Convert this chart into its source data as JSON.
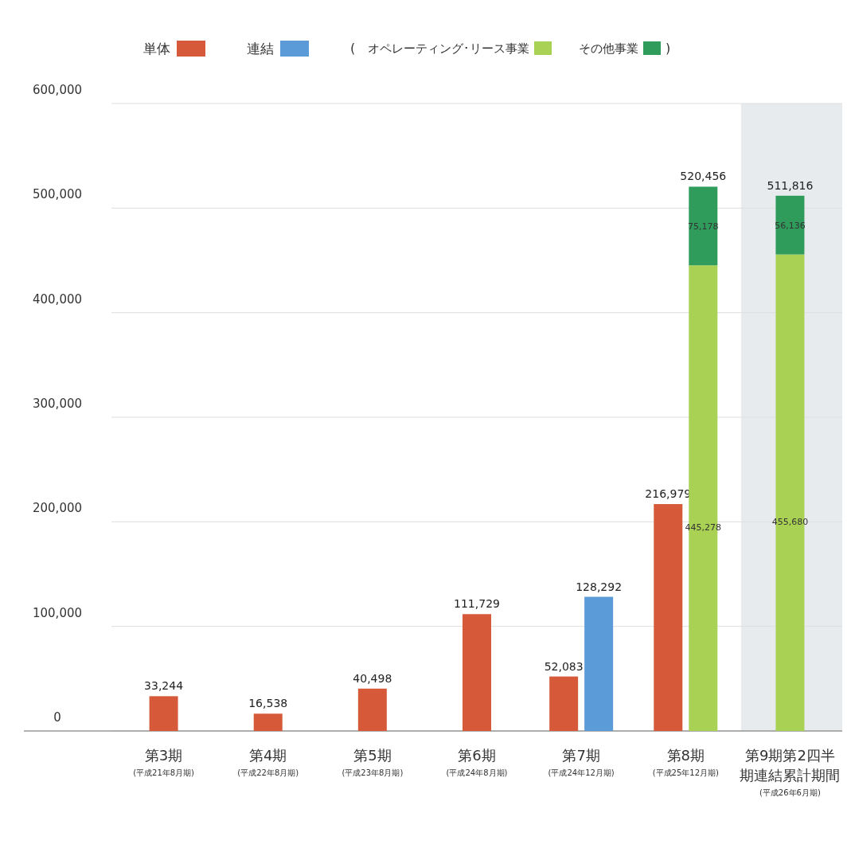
{
  "chart_data": {
    "type": "bar",
    "categories": [
      "第3期\n(平成21年8月期)",
      "第4期\n(平成22年8月期)",
      "第5期\n(平成23年8月期)",
      "第6期\n(平成24年8月期)",
      "第7期\n(平成24年12月期)",
      "第8期\n(平成25年12月期)",
      "第9期第2四半期連結累計期間\n(平成26年6月期)"
    ],
    "series": [
      {
        "name": "単体",
        "color": "#d65a3a",
        "values": [
          33244,
          16538,
          40498,
          111729,
          52083,
          216979,
          null
        ],
        "value_labels": [
          "33,244",
          "16,538",
          "40,498",
          "111,729",
          "52,083",
          "216,979",
          null
        ]
      },
      {
        "name": "連結",
        "color": "#5b9bd8",
        "values": [
          null,
          null,
          null,
          null,
          128292,
          null,
          null
        ],
        "value_labels": [
          null,
          null,
          null,
          null,
          "128,292",
          null,
          null
        ]
      },
      {
        "name": "オペレーティング･リース事業",
        "color": "#a9d154",
        "values": [
          null,
          null,
          null,
          null,
          null,
          445278,
          455680
        ],
        "value_labels": [
          null,
          null,
          null,
          null,
          null,
          "445,278",
          "455,680"
        ]
      },
      {
        "name": "その他事業",
        "color": "#2f9c5c",
        "values": [
          null,
          null,
          null,
          null,
          null,
          75178,
          56136
        ],
        "base": [
          null,
          null,
          null,
          null,
          null,
          445278,
          455680
        ],
        "value_labels": [
          null,
          null,
          null,
          null,
          null,
          "75,178",
          "56,136"
        ]
      }
    ],
    "ylim": [
      0,
      600000
    ],
    "yticks": [
      0,
      {
        "value": 100000,
        "label": "100,000"
      },
      {
        "value": 200000,
        "label": "200,000"
      },
      {
        "value": 300000,
        "label": "300,000"
      },
      {
        "value": 400000,
        "label": "400,000"
      },
      {
        "value": 500000,
        "label": "500,000"
      },
      {
        "value": 600000,
        "label": "600,000"
      }
    ],
    "grid": "y",
    "legend": "top",
    "annotations": [
      "(",
      ")",
      {
        "text": "520,456",
        "x": "第8期\n(平成25年12月期)",
        "y": 520456
      },
      {
        "text": "511,816",
        "x": "第9期第2四半期連結累計期間\n(平成26年6月期)",
        "y": 511816
      }
    ],
    "bands": [
      {
        "axis": "x",
        "from": "第9期第2四半期連結累計期間\n(平成26年6月期)",
        "to": "第9期第2四半期連結累計期間\n(平成26年6月期)",
        "color": "#e8ebee"
      }
    ]
  }
}
